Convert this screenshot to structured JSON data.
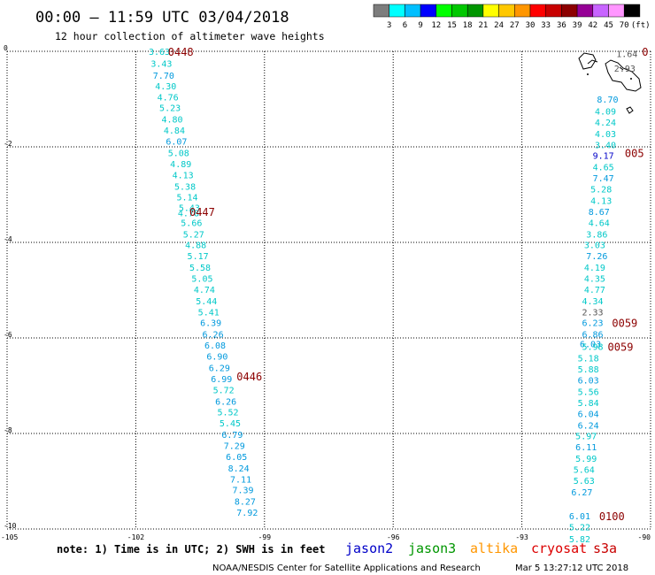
{
  "header": {
    "title": "00:00 — 11:59 UTC 03/04/2018",
    "subtitle": "12 hour collection of altimeter wave heights"
  },
  "scale": {
    "unit": "(ft)",
    "labels": [
      "3",
      "6",
      "9",
      "12",
      "15",
      "18",
      "21",
      "24",
      "27",
      "30",
      "33",
      "36",
      "39",
      "42",
      "45",
      "70"
    ],
    "colors": [
      "#7d7d7d",
      "#00ffff",
      "#00bfff",
      "#0000ff",
      "#00ff00",
      "#00c800",
      "#009600",
      "#ffff00",
      "#ffc800",
      "#ff9600",
      "#ff0000",
      "#c80000",
      "#8c0000",
      "#960096",
      "#c864ff",
      "#ff96ff",
      "#000000"
    ]
  },
  "axes": {
    "x_ticks": [
      "-105",
      "-102",
      "-99",
      "-96",
      "-93",
      "-90"
    ],
    "y_ticks": [
      "0",
      "-2",
      "-4",
      "-6",
      "-8",
      "-10"
    ]
  },
  "footer": {
    "note": "note: 1) Time is in UTC; 2) SWH is in feet",
    "satellites": [
      {
        "name": "jason2",
        "color": "#0000c8"
      },
      {
        "name": "jason3",
        "color": "#009600"
      },
      {
        "name": "altika",
        "color": "#ff9600"
      },
      {
        "name": "cryosat",
        "color": "#dc0000"
      },
      {
        "name": "s3a",
        "color": "#c80000"
      }
    ],
    "credit": "NOAA/NESDIS Center for Satellite Applications and Research",
    "generated": "Mar  5 13:27:12 UTC 2018"
  },
  "chart_data": {
    "type": "scatter",
    "title": "00:00 — 11:59 UTC 03/04/2018",
    "subtitle": "12 hour collection of altimeter wave heights",
    "xlim": [
      -105,
      -90
    ],
    "ylim": [
      -10,
      0
    ],
    "grid": true,
    "units": "ft",
    "tracks": [
      {
        "points": [
          {
            "x": -101.7,
            "y": 0.0,
            "v": "3.63"
          },
          {
            "x": -101.65,
            "y": -0.25,
            "v": "3.43"
          },
          {
            "x": -101.6,
            "y": -0.5,
            "v": "7.70"
          },
          {
            "x": -101.55,
            "y": -0.72,
            "v": "4.30"
          },
          {
            "x": -101.5,
            "y": -0.95,
            "v": "4.76"
          },
          {
            "x": -101.45,
            "y": -1.18,
            "v": "5.23"
          },
          {
            "x": -101.4,
            "y": -1.42,
            "v": "4.80"
          },
          {
            "x": -101.35,
            "y": -1.65,
            "v": "4.84"
          },
          {
            "x": -101.3,
            "y": -1.88,
            "v": "6.07"
          },
          {
            "x": -101.25,
            "y": -2.12,
            "v": "5.08"
          },
          {
            "x": -101.2,
            "y": -2.35,
            "v": "4.89"
          },
          {
            "x": -101.15,
            "y": -2.58,
            "v": "4.13"
          },
          {
            "x": -101.1,
            "y": -2.82,
            "v": "5.38"
          },
          {
            "x": -101.05,
            "y": -3.05,
            "v": "5.14"
          },
          {
            "x": -101.0,
            "y": -3.27,
            "v": "5.43"
          },
          {
            "x": -101.02,
            "y": -3.38,
            "v": "4.78"
          },
          {
            "x": -100.95,
            "y": -3.58,
            "v": "5.66"
          },
          {
            "x": -100.9,
            "y": -3.82,
            "v": "5.27"
          },
          {
            "x": -100.85,
            "y": -4.05,
            "v": "4.88"
          },
          {
            "x": -100.8,
            "y": -4.28,
            "v": "5.17"
          },
          {
            "x": -100.75,
            "y": -4.52,
            "v": "5.58"
          },
          {
            "x": -100.7,
            "y": -4.75,
            "v": "5.05"
          },
          {
            "x": -100.65,
            "y": -4.98,
            "v": "4.74"
          },
          {
            "x": -100.6,
            "y": -5.22,
            "v": "5.44"
          },
          {
            "x": -100.55,
            "y": -5.45,
            "v": "5.41"
          },
          {
            "x": -100.5,
            "y": -5.68,
            "v": "6.39"
          },
          {
            "x": -100.45,
            "y": -5.92,
            "v": "6.26"
          },
          {
            "x": -100.4,
            "y": -6.15,
            "v": "6.08"
          },
          {
            "x": -100.35,
            "y": -6.38,
            "v": "6.90"
          },
          {
            "x": -100.3,
            "y": -6.62,
            "v": "6.29"
          },
          {
            "x": -100.25,
            "y": -6.85,
            "v": "6.99"
          },
          {
            "x": -100.2,
            "y": -7.08,
            "v": "5.72"
          },
          {
            "x": -100.15,
            "y": -7.32,
            "v": "6.26"
          },
          {
            "x": -100.1,
            "y": -7.55,
            "v": "5.52"
          },
          {
            "x": -100.05,
            "y": -7.78,
            "v": "5.45"
          },
          {
            "x": -100.0,
            "y": -8.02,
            "v": "6.79"
          },
          {
            "x": -99.95,
            "y": -8.25,
            "v": "7.29"
          },
          {
            "x": -99.9,
            "y": -8.48,
            "v": "6.05"
          },
          {
            "x": -99.85,
            "y": -8.72,
            "v": "8.24"
          },
          {
            "x": -99.8,
            "y": -8.95,
            "v": "7.11"
          },
          {
            "x": -99.75,
            "y": -9.18,
            "v": "7.39"
          },
          {
            "x": -99.7,
            "y": -9.42,
            "v": "8.27"
          },
          {
            "x": -99.65,
            "y": -9.65,
            "v": "7.92"
          }
        ],
        "time_labels": [
          {
            "x": -101.25,
            "y": -0.0,
            "label": "0448"
          },
          {
            "x": -100.75,
            "y": -3.35,
            "label": "0447"
          },
          {
            "x": -99.65,
            "y": -6.8,
            "label": "0446"
          }
        ]
      },
      {
        "points": [
          {
            "x": -90.8,
            "y": -0.05,
            "v": "1.64"
          },
          {
            "x": -90.85,
            "y": -0.35,
            "v": "2.93"
          },
          {
            "x": -91.25,
            "y": -1.0,
            "v": "8.70"
          },
          {
            "x": -91.3,
            "y": -1.25,
            "v": "4.09"
          },
          {
            "x": -91.3,
            "y": -1.48,
            "v": "4.24"
          },
          {
            "x": -91.3,
            "y": -1.72,
            "v": "4.03"
          },
          {
            "x": -91.3,
            "y": -1.95,
            "v": "3.40"
          },
          {
            "x": -91.35,
            "y": -2.18,
            "v": "9.17"
          },
          {
            "x": -91.35,
            "y": -2.42,
            "v": "4.65"
          },
          {
            "x": -91.35,
            "y": -2.65,
            "v": "7.47"
          },
          {
            "x": -91.4,
            "y": -2.88,
            "v": "5.28"
          },
          {
            "x": -91.4,
            "y": -3.12,
            "v": "4.13"
          },
          {
            "x": -91.45,
            "y": -3.35,
            "v": "8.67"
          },
          {
            "x": -91.45,
            "y": -3.58,
            "v": "4.64"
          },
          {
            "x": -91.5,
            "y": -3.82,
            "v": "3.86"
          },
          {
            "x": -91.55,
            "y": -4.05,
            "v": "3.03"
          },
          {
            "x": -91.5,
            "y": -4.28,
            "v": "7.26"
          },
          {
            "x": -91.55,
            "y": -4.52,
            "v": "4.19"
          },
          {
            "x": -91.55,
            "y": -4.75,
            "v": "4.35"
          },
          {
            "x": -91.55,
            "y": -4.98,
            "v": "4.77"
          },
          {
            "x": -91.6,
            "y": -5.22,
            "v": "4.34"
          },
          {
            "x": -91.6,
            "y": -5.45,
            "v": "2.33"
          },
          {
            "x": -91.6,
            "y": -5.68,
            "v": "6.23"
          },
          {
            "x": -91.6,
            "y": -5.92,
            "v": "6.86"
          },
          {
            "x": -91.65,
            "y": -6.12,
            "v": "6.03"
          },
          {
            "x": -91.6,
            "y": -6.18,
            "v": "5.98"
          },
          {
            "x": -91.7,
            "y": -6.42,
            "v": "5.18"
          },
          {
            "x": -91.7,
            "y": -6.65,
            "v": "5.88"
          },
          {
            "x": -91.7,
            "y": -6.88,
            "v": "6.03"
          },
          {
            "x": -91.7,
            "y": -7.12,
            "v": "5.56"
          },
          {
            "x": -91.7,
            "y": -7.35,
            "v": "5.84"
          },
          {
            "x": -91.7,
            "y": -7.58,
            "v": "6.04"
          },
          {
            "x": -91.7,
            "y": -7.82,
            "v": "6.24"
          },
          {
            "x": -91.75,
            "y": -8.05,
            "v": "5.97"
          },
          {
            "x": -91.75,
            "y": -8.28,
            "v": "6.11"
          },
          {
            "x": -91.75,
            "y": -8.52,
            "v": "5.99"
          },
          {
            "x": -91.8,
            "y": -8.75,
            "v": "5.64"
          },
          {
            "x": -91.8,
            "y": -8.98,
            "v": "5.63"
          },
          {
            "x": -91.85,
            "y": -9.22,
            "v": "6.27"
          },
          {
            "x": -91.9,
            "y": -9.72,
            "v": "6.01"
          },
          {
            "x": -91.9,
            "y": -9.95,
            "v": "5.22"
          },
          {
            "x": -91.9,
            "y": -10.2,
            "v": "5.82"
          }
        ],
        "time_labels": [
          {
            "x": -90.2,
            "y": -0.0,
            "label": "0"
          },
          {
            "x": -90.6,
            "y": -2.12,
            "label": "005"
          },
          {
            "x": -90.9,
            "y": -5.68,
            "label": "0059"
          },
          {
            "x": -91.0,
            "y": -6.18,
            "label": "0059"
          },
          {
            "x": -91.2,
            "y": -9.72,
            "label": "0100"
          }
        ]
      }
    ]
  }
}
